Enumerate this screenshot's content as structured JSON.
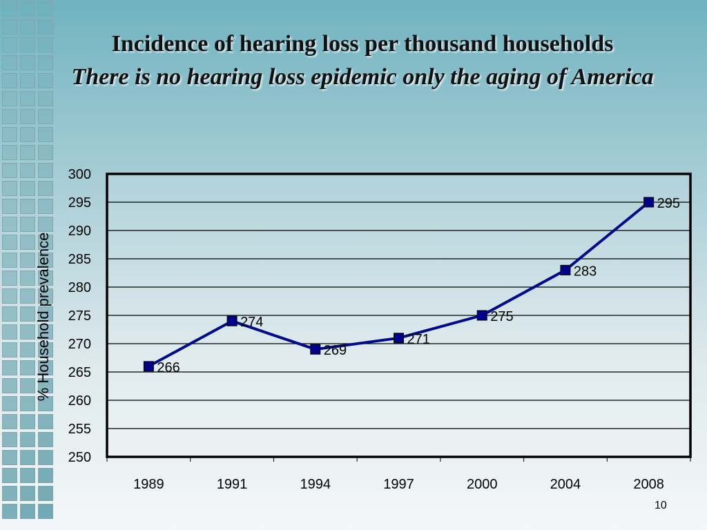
{
  "slide": {
    "title": "Incidence of hearing loss per thousand households",
    "subtitle": "There is no hearing loss epidemic only the aging of America",
    "page_number": "10"
  },
  "colors": {
    "line": "#000a8c",
    "marker": "#00008b",
    "gridline": "#000000",
    "plot_border": "#000000"
  },
  "chart_data": {
    "type": "line",
    "categories": [
      "1989",
      "1991",
      "1994",
      "1997",
      "2000",
      "2004",
      "2008"
    ],
    "values": [
      266,
      274,
      269,
      271,
      275,
      283,
      295
    ],
    "data_labels": [
      "266",
      "274",
      "269",
      "271",
      "275",
      "283",
      "295"
    ],
    "ylabel": "% Household prevalence",
    "xlabel": "",
    "ylim": [
      250,
      300
    ],
    "yticks": [
      250,
      255,
      260,
      265,
      270,
      275,
      280,
      285,
      290,
      295,
      300
    ],
    "grid": true,
    "marker": "square",
    "legend": "none"
  }
}
